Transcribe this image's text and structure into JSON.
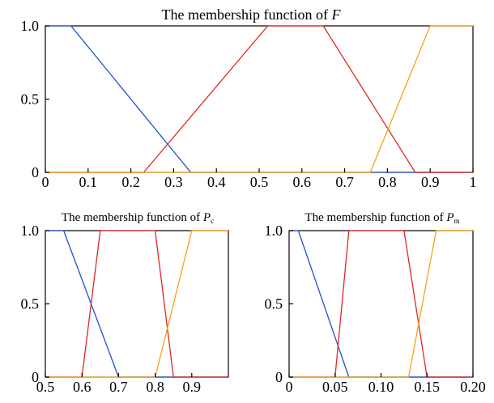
{
  "chart_data": [
    {
      "type": "line",
      "title": "The membership function of ",
      "title_var": "F",
      "title_sub": "",
      "xlim": [
        0,
        1
      ],
      "ylim": [
        0,
        1
      ],
      "xticks": [
        0,
        0.1,
        0.2,
        0.3,
        0.4,
        0.5,
        0.6,
        0.7,
        0.8,
        0.9,
        1
      ],
      "xtick_labels": [
        "0",
        "0.1",
        "0.2",
        "0.3",
        "0.4",
        "0.5",
        "0.6",
        "0.7",
        "0.8",
        "0.9",
        "1"
      ],
      "yticks": [
        0,
        0.5,
        1
      ],
      "ytick_labels": [
        "0",
        "0.5",
        "1.0"
      ],
      "grid": false,
      "series": [
        {
          "color": "#1f4fd0",
          "x": [
            0,
            0.06,
            0.34,
            1
          ],
          "y": [
            1,
            1,
            0,
            0
          ]
        },
        {
          "color": "#e3261f",
          "x": [
            0,
            0.23,
            0.52,
            0.65,
            0.865,
            1
          ],
          "y": [
            0,
            0,
            1,
            1,
            0,
            0
          ]
        },
        {
          "color": "#f7a21b",
          "x": [
            0,
            0.76,
            0.9,
            1
          ],
          "y": [
            0,
            0,
            1,
            1
          ]
        }
      ]
    },
    {
      "type": "line",
      "title": "The membership function of ",
      "title_var": "P",
      "title_sub": "c",
      "xlim": [
        0.5,
        1.0
      ],
      "ylim": [
        0,
        1
      ],
      "xticks": [
        0.5,
        0.6,
        0.7,
        0.8,
        0.9
      ],
      "xtick_labels": [
        "0.5",
        "0.6",
        "0.7",
        "0.8",
        "0.9"
      ],
      "yticks": [
        0,
        0.5,
        1
      ],
      "ytick_labels": [
        "0",
        "0.5",
        "1.0"
      ],
      "grid": false,
      "series": [
        {
          "color": "#1f4fd0",
          "x": [
            0.5,
            0.55,
            0.7,
            1.0
          ],
          "y": [
            1,
            1,
            0,
            0
          ]
        },
        {
          "color": "#e3261f",
          "x": [
            0.5,
            0.6,
            0.65,
            0.7,
            0.8,
            0.85,
            1.0
          ],
          "y": [
            0,
            0,
            1,
            1,
            1,
            0,
            0
          ]
        },
        {
          "color": "#f7a21b",
          "x": [
            0.5,
            0.8,
            0.9,
            1.0
          ],
          "y": [
            0,
            0,
            1,
            1
          ]
        }
      ]
    },
    {
      "type": "line",
      "title": "The membership function of ",
      "title_var": "P",
      "title_sub": "m",
      "xlim": [
        0,
        0.2
      ],
      "ylim": [
        0,
        1
      ],
      "xticks": [
        0,
        0.05,
        0.1,
        0.15,
        0.2
      ],
      "xtick_labels": [
        "0",
        "0.05",
        "0.10",
        "0.15",
        "0.20"
      ],
      "yticks": [
        0,
        0.5,
        1
      ],
      "ytick_labels": [
        "0",
        "0.5",
        "1.0"
      ],
      "grid": false,
      "series": [
        {
          "color": "#1f4fd0",
          "x": [
            0,
            0.01,
            0.065,
            0.2
          ],
          "y": [
            1,
            1,
            0,
            0
          ]
        },
        {
          "color": "#e3261f",
          "x": [
            0,
            0.05,
            0.065,
            0.095,
            0.125,
            0.15,
            0.2
          ],
          "y": [
            0,
            0,
            1,
            1,
            1,
            0,
            0
          ]
        },
        {
          "color": "#f7a21b",
          "x": [
            0,
            0.13,
            0.16,
            0.2
          ],
          "y": [
            0,
            0,
            1,
            1
          ]
        }
      ]
    }
  ]
}
